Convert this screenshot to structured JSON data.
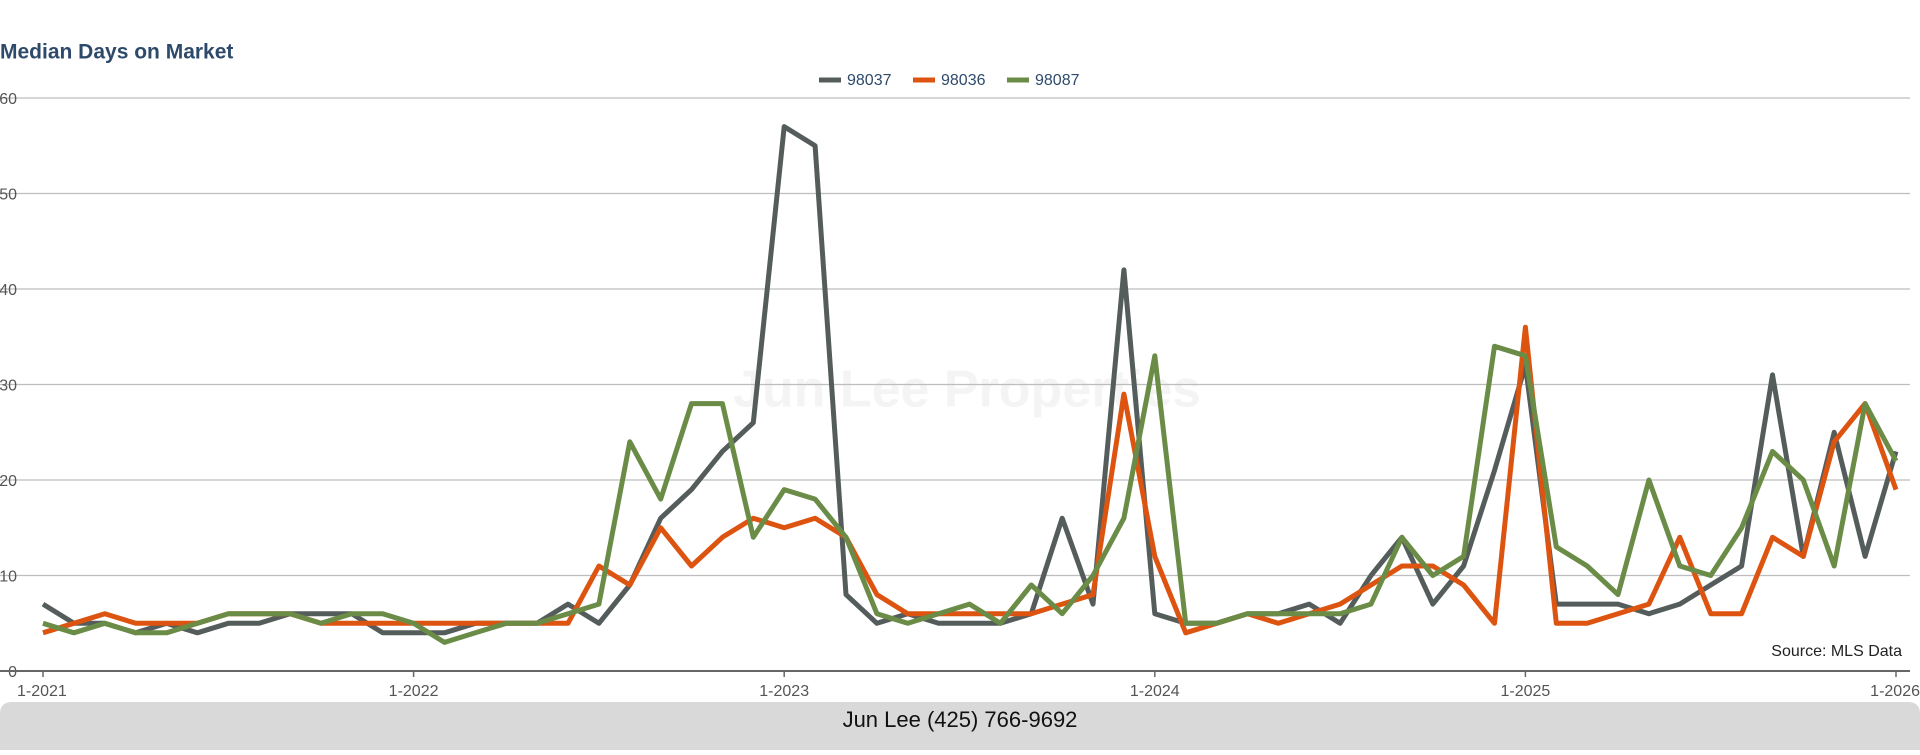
{
  "chart_data": {
    "type": "line",
    "title": "Median Days on Market",
    "watermark": "Jun Lee Properties",
    "source": "Source: MLS Data",
    "footer": "Jun Lee (425) 766-9692",
    "categories": [
      "1-2021",
      null,
      null,
      null,
      null,
      null,
      null,
      null,
      null,
      null,
      null,
      null,
      "1-2022",
      null,
      null,
      null,
      null,
      null,
      null,
      null,
      null,
      null,
      null,
      null,
      "1-2023",
      null,
      null,
      null,
      null,
      null,
      null,
      null,
      null,
      null,
      null,
      null,
      "1-2024",
      null,
      null,
      null,
      null,
      null,
      null,
      null,
      null,
      null,
      null,
      null,
      "1-2025",
      null,
      null,
      null,
      null,
      null,
      null,
      null,
      null,
      null,
      null,
      null,
      "1-2026"
    ],
    "series": [
      {
        "name": "98037",
        "color": "#555d5c",
        "values": [
          7,
          5,
          5,
          4,
          5,
          4,
          5,
          5,
          6,
          6,
          6,
          4,
          4,
          4,
          5,
          5,
          5,
          7,
          5,
          9,
          16,
          19,
          23,
          26,
          57,
          55,
          8,
          5,
          6,
          5,
          5,
          5,
          6,
          16,
          7,
          42,
          6,
          5,
          5,
          6,
          6,
          7,
          5,
          10,
          14,
          7,
          11,
          21,
          32,
          7,
          7,
          7,
          6,
          7,
          9,
          11,
          31,
          12,
          25,
          12,
          23
        ]
      },
      {
        "name": "98036",
        "color": "#dd5411",
        "values": [
          4,
          5,
          6,
          5,
          5,
          5,
          6,
          6,
          6,
          5,
          5,
          5,
          5,
          5,
          5,
          5,
          5,
          5,
          11,
          9,
          15,
          11,
          14,
          16,
          15,
          16,
          14,
          8,
          6,
          6,
          6,
          6,
          6,
          7,
          8,
          29,
          12,
          4,
          5,
          6,
          5,
          6,
          7,
          9,
          11,
          11,
          9,
          5,
          36,
          5,
          5,
          6,
          7,
          14,
          6,
          6,
          14,
          12,
          24,
          28,
          19
        ]
      },
      {
        "name": "98087",
        "color": "#6a8c47",
        "values": [
          5,
          4,
          5,
          4,
          4,
          5,
          6,
          6,
          6,
          5,
          6,
          6,
          5,
          3,
          4,
          5,
          5,
          6,
          7,
          24,
          18,
          28,
          28,
          14,
          19,
          18,
          14,
          6,
          5,
          6,
          7,
          5,
          9,
          6,
          10,
          16,
          33,
          5,
          5,
          6,
          6,
          6,
          6,
          7,
          14,
          10,
          12,
          34,
          33,
          13,
          11,
          8,
          20,
          11,
          10,
          15,
          23,
          20,
          11,
          28,
          22
        ]
      }
    ],
    "ylim": [
      0,
      60
    ],
    "yticks": [
      0,
      10,
      20,
      30,
      40,
      50,
      60
    ],
    "grid": true,
    "legend": "top"
  }
}
